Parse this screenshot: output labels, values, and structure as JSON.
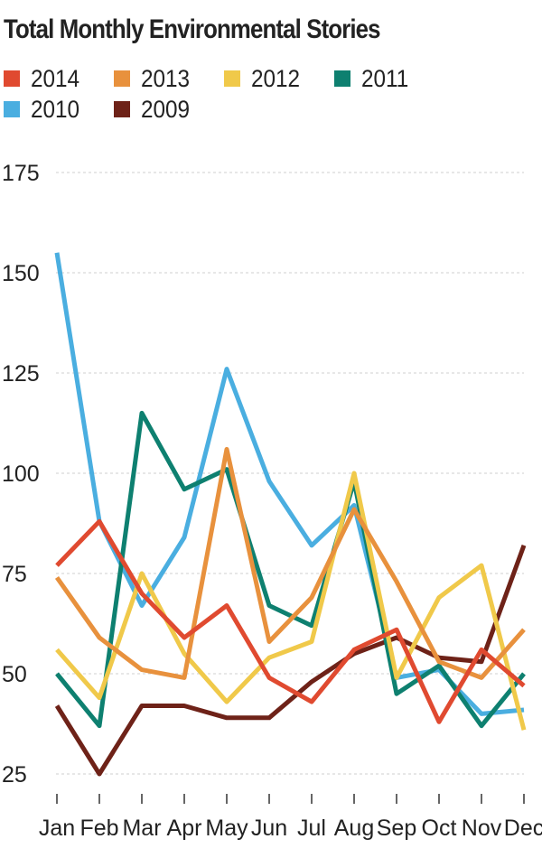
{
  "chart_data": {
    "type": "line",
    "title": "Total Monthly Environmental Stories",
    "categories": [
      "Jan",
      "Feb",
      "Mar",
      "Apr",
      "May",
      "Jun",
      "Jul",
      "Aug",
      "Sep",
      "Oct",
      "Nov",
      "Dec"
    ],
    "ylim": [
      20,
      175
    ],
    "yticks": [
      25,
      50,
      75,
      100,
      125,
      150,
      175
    ],
    "grid": true,
    "legend_position": "top",
    "series": [
      {
        "name": "2014",
        "color": "#e04a30",
        "values": [
          77,
          88,
          70,
          59,
          67,
          49,
          43,
          56,
          61,
          38,
          56,
          47
        ]
      },
      {
        "name": "2013",
        "color": "#e8913d",
        "values": [
          74,
          59,
          51,
          49,
          106,
          58,
          69,
          91,
          73,
          53,
          49,
          61
        ]
      },
      {
        "name": "2012",
        "color": "#f0c94a",
        "values": [
          56,
          44,
          75,
          55,
          43,
          54,
          58,
          100,
          49,
          69,
          77,
          36
        ]
      },
      {
        "name": "2011",
        "color": "#0e8070",
        "values": [
          50,
          37,
          115,
          96,
          101,
          67,
          62,
          98,
          45,
          52,
          37,
          50
        ]
      },
      {
        "name": "2010",
        "color": "#4aaee0",
        "values": [
          155,
          88,
          67,
          84,
          126,
          98,
          82,
          92,
          49,
          51,
          40,
          41
        ]
      },
      {
        "name": "2009",
        "color": "#6e2218",
        "values": [
          42,
          25,
          42,
          42,
          39,
          39,
          48,
          55,
          59,
          54,
          53,
          82
        ]
      }
    ]
  }
}
